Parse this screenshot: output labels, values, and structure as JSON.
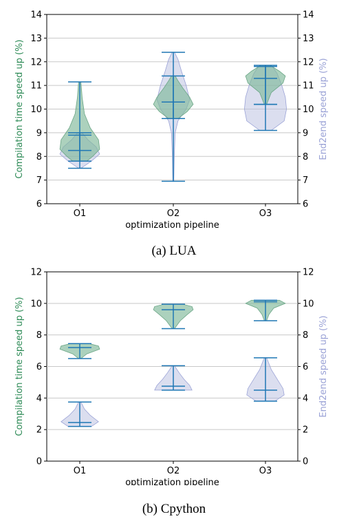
{
  "chart_data": [
    {
      "type": "violin",
      "caption": "(a) LUA",
      "categories": [
        "O1",
        "O2",
        "O3"
      ],
      "xlabel": "optimization pipeline",
      "ylabel_left": "Compilation time speed up (%)",
      "ylabel_right": "End2end speed up (%)",
      "ylim": [
        6,
        14
      ],
      "yticks": [
        "6",
        "7",
        "8",
        "9",
        "10",
        "11",
        "12",
        "13",
        "14"
      ],
      "grid": true,
      "colors": {
        "compilation": "#7fb89a",
        "end2end": "#b7bde0",
        "stats": "#1f77b4",
        "left_label": "#2e8b57",
        "right_label": "#9aa2d6"
      },
      "series": [
        {
          "name": "Compilation time speed up (%)",
          "axis": "left",
          "violins": [
            {
              "category": "O1",
              "min": 7.8,
              "max": 11.15,
              "median": 8.9,
              "density": [
                [
                  7.8,
                  0.3
                ],
                [
                  8.0,
                  0.55
                ],
                [
                  8.3,
                  0.85
                ],
                [
                  8.7,
                  0.8
                ],
                [
                  9.2,
                  0.45
                ],
                [
                  9.8,
                  0.2
                ],
                [
                  10.5,
                  0.1
                ],
                [
                  11.15,
                  0.05
                ]
              ]
            },
            {
              "category": "O2",
              "min": 9.6,
              "max": 11.4,
              "median": 10.3,
              "density": [
                [
                  9.6,
                  0.2
                ],
                [
                  9.9,
                  0.6
                ],
                [
                  10.2,
                  0.85
                ],
                [
                  10.5,
                  0.7
                ],
                [
                  10.9,
                  0.4
                ],
                [
                  11.2,
                  0.2
                ],
                [
                  11.4,
                  0.08
                ]
              ]
            },
            {
              "category": "O3",
              "min": 10.2,
              "max": 11.85,
              "median": 11.3,
              "density": [
                [
                  10.2,
                  0.05
                ],
                [
                  10.7,
                  0.25
                ],
                [
                  11.1,
                  0.75
                ],
                [
                  11.4,
                  0.85
                ],
                [
                  11.6,
                  0.6
                ],
                [
                  11.85,
                  0.2
                ]
              ]
            }
          ]
        },
        {
          "name": "End2end speed up (%)",
          "axis": "right",
          "violins": [
            {
              "category": "O1",
              "min": 7.5,
              "max": 9.0,
              "median": 8.25,
              "density": [
                [
                  7.5,
                  0.05
                ],
                [
                  7.8,
                  0.5
                ],
                [
                  8.1,
                  0.85
                ],
                [
                  8.4,
                  0.7
                ],
                [
                  8.7,
                  0.35
                ],
                [
                  9.0,
                  0.1
                ]
              ]
            },
            {
              "category": "O2",
              "min": 6.95,
              "max": 12.4,
              "median": 10.3,
              "density": [
                [
                  6.95,
                  0.02
                ],
                [
                  8.0,
                  0.04
                ],
                [
                  9.0,
                  0.08
                ],
                [
                  9.5,
                  0.2
                ],
                [
                  10.0,
                  0.55
                ],
                [
                  10.4,
                  0.7
                ],
                [
                  11.0,
                  0.55
                ],
                [
                  11.6,
                  0.35
                ],
                [
                  12.1,
                  0.2
                ],
                [
                  12.4,
                  0.05
                ]
              ]
            },
            {
              "category": "O3",
              "min": 9.1,
              "max": 11.8,
              "median": 10.2,
              "density": [
                [
                  9.1,
                  0.25
                ],
                [
                  9.5,
                  0.8
                ],
                [
                  10.0,
                  0.9
                ],
                [
                  10.5,
                  0.85
                ],
                [
                  11.0,
                  0.7
                ],
                [
                  11.5,
                  0.5
                ],
                [
                  11.8,
                  0.3
                ]
              ]
            }
          ]
        }
      ]
    },
    {
      "type": "violin",
      "caption": "(b) Cpython",
      "categories": [
        "O1",
        "O2",
        "O3"
      ],
      "xlabel": "optimization pipeline",
      "ylabel_left": "Compilation time speed up (%)",
      "ylabel_right": "End2end speed up (%)",
      "ylim": [
        0,
        12
      ],
      "yticks": [
        "0",
        "2",
        "4",
        "6",
        "8",
        "10",
        "12"
      ],
      "grid": true,
      "colors": {
        "compilation": "#7fb89a",
        "end2end": "#b7bde0",
        "stats": "#1f77b4",
        "left_label": "#2e8b57",
        "right_label": "#9aa2d6"
      },
      "series": [
        {
          "name": "Compilation time speed up (%)",
          "axis": "left",
          "violins": [
            {
              "category": "O1",
              "min": 6.5,
              "max": 7.45,
              "median": 7.2,
              "density": [
                [
                  6.5,
                  0.05
                ],
                [
                  6.8,
                  0.3
                ],
                [
                  7.1,
                  0.85
                ],
                [
                  7.3,
                  0.8
                ],
                [
                  7.45,
                  0.4
                ]
              ]
            },
            {
              "category": "O2",
              "min": 8.4,
              "max": 9.95,
              "median": 9.6,
              "density": [
                [
                  8.4,
                  0.05
                ],
                [
                  8.9,
                  0.3
                ],
                [
                  9.3,
                  0.6
                ],
                [
                  9.6,
                  0.85
                ],
                [
                  9.8,
                  0.8
                ],
                [
                  9.95,
                  0.4
                ]
              ]
            },
            {
              "category": "O3",
              "min": 8.9,
              "max": 10.2,
              "median": 10.1,
              "density": [
                [
                  8.9,
                  0.05
                ],
                [
                  9.3,
                  0.15
                ],
                [
                  9.7,
                  0.35
                ],
                [
                  10.0,
                  0.85
                ],
                [
                  10.2,
                  0.6
                ]
              ]
            }
          ]
        },
        {
          "name": "End2end speed up (%)",
          "axis": "right",
          "violins": [
            {
              "category": "O1",
              "min": 2.2,
              "max": 3.75,
              "median": 2.45,
              "density": [
                [
                  2.2,
                  0.5
                ],
                [
                  2.5,
                  0.8
                ],
                [
                  2.9,
                  0.45
                ],
                [
                  3.3,
                  0.2
                ],
                [
                  3.75,
                  0.05
                ]
              ]
            },
            {
              "category": "O2",
              "min": 4.5,
              "max": 6.05,
              "median": 4.75,
              "density": [
                [
                  4.5,
                  0.8
                ],
                [
                  4.8,
                  0.7
                ],
                [
                  5.2,
                  0.45
                ],
                [
                  5.6,
                  0.25
                ],
                [
                  6.05,
                  0.05
                ]
              ]
            },
            {
              "category": "O3",
              "min": 3.8,
              "max": 6.55,
              "median": 4.5,
              "density": [
                [
                  3.8,
                  0.4
                ],
                [
                  4.2,
                  0.8
                ],
                [
                  4.6,
                  0.75
                ],
                [
                  5.2,
                  0.5
                ],
                [
                  5.8,
                  0.25
                ],
                [
                  6.55,
                  0.05
                ]
              ]
            }
          ]
        }
      ]
    }
  ]
}
